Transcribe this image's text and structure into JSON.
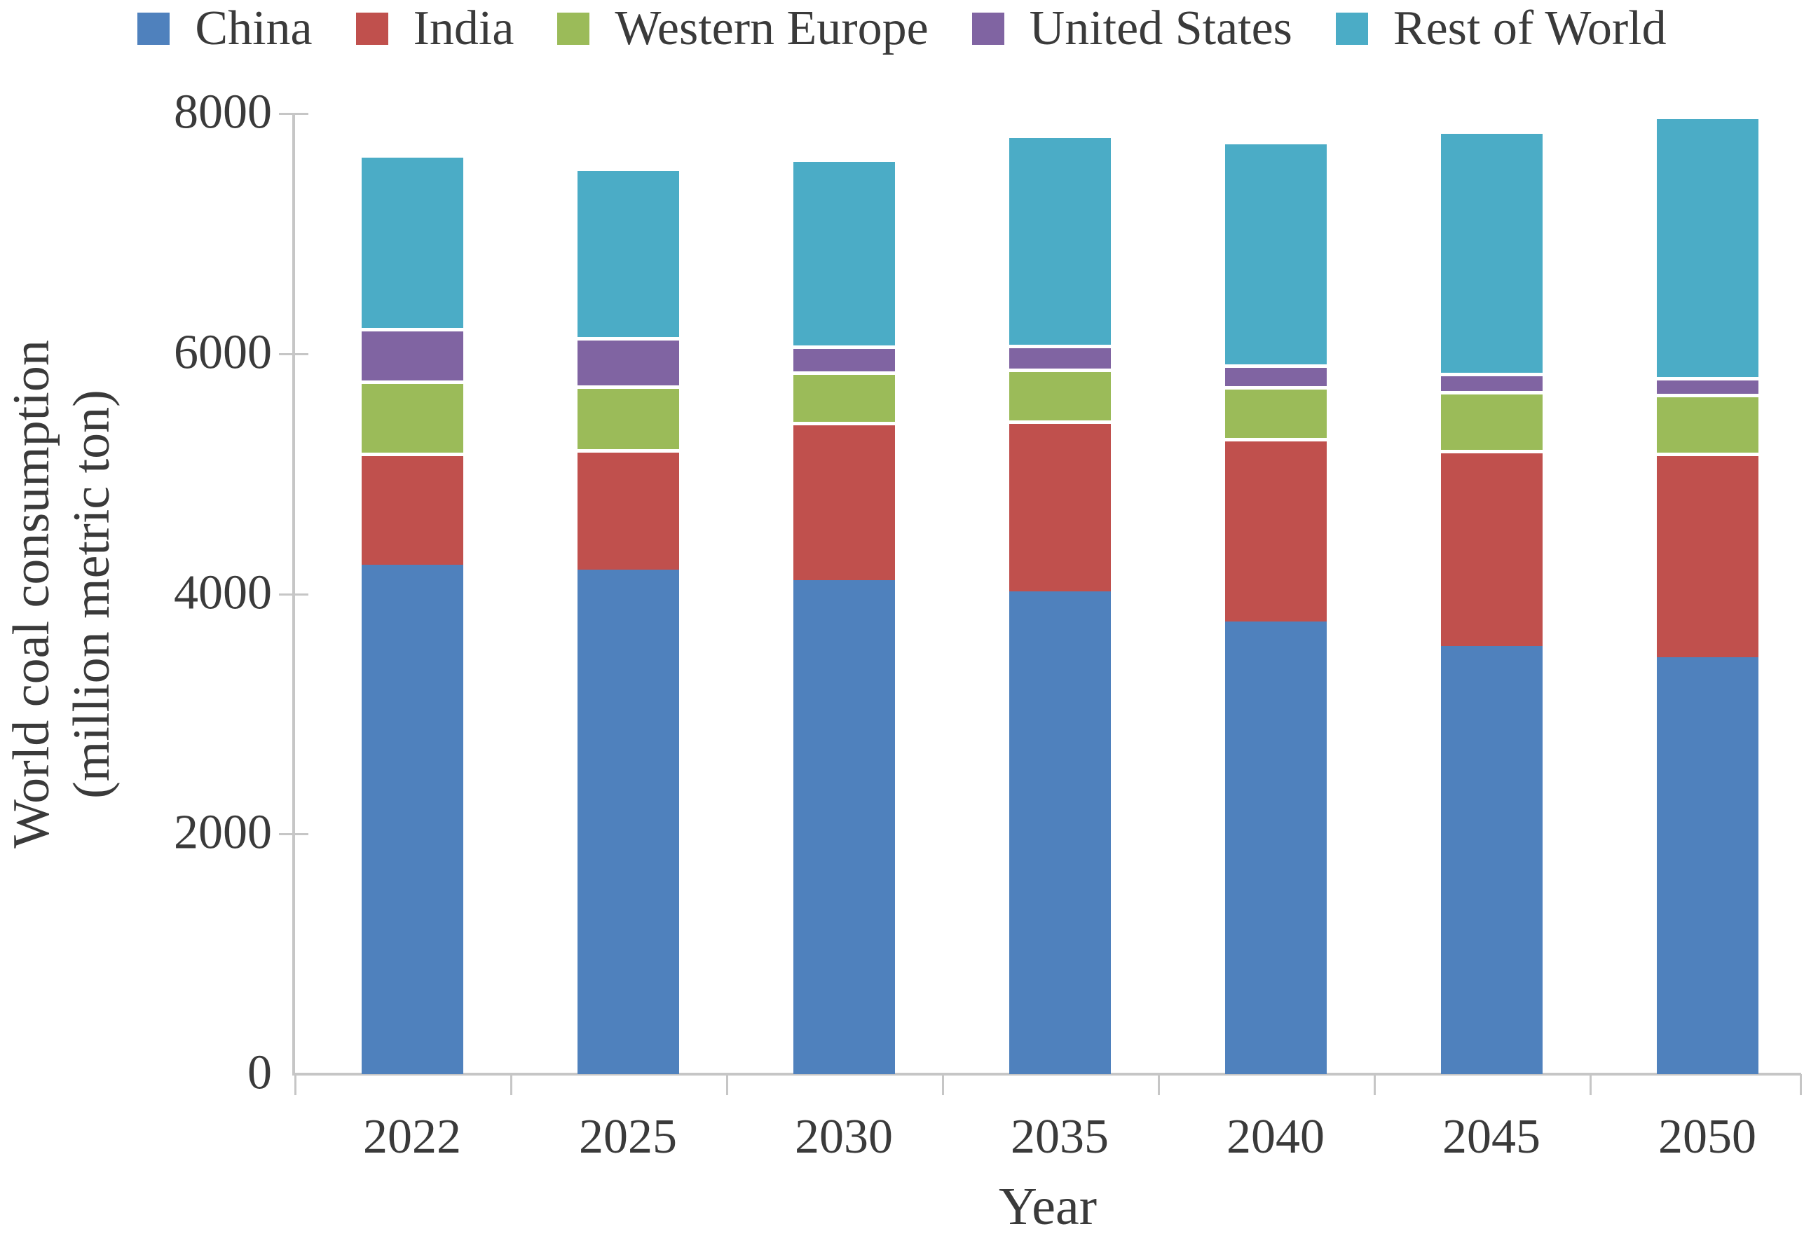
{
  "legend": {
    "entries": [
      "China",
      "India",
      "Western Europe",
      "United States",
      "Rest of World"
    ]
  },
  "axes": {
    "y_title_line1": "World coal consumption",
    "y_title_line2": "(million metric ton)",
    "x_title": "Year",
    "y_tick_labels": [
      "0",
      "2000",
      "4000",
      "6000",
      "8000"
    ]
  },
  "chart_data": {
    "type": "bar",
    "stacked": true,
    "title": "",
    "xlabel": "Year",
    "ylabel": "World coal consumption (million metric ton)",
    "categories": [
      "2022",
      "2025",
      "2030",
      "2035",
      "2040",
      "2045",
      "2050"
    ],
    "series": [
      {
        "name": "China",
        "color": "#4f81bd",
        "values": [
          4240,
          4200,
          4115,
          4020,
          3770,
          3565,
          3470
        ]
      },
      {
        "name": "India",
        "color": "#c0504d",
        "values": [
          935,
          1005,
          1320,
          1425,
          1530,
          1635,
          1705
        ]
      },
      {
        "name": "Western Europe",
        "color": "#9bbb59",
        "values": [
          600,
          530,
          420,
          430,
          430,
          490,
          490
        ]
      },
      {
        "name": "United States",
        "color": "#8064a2",
        "values": [
          440,
          405,
          215,
          200,
          180,
          150,
          140
        ]
      },
      {
        "name": "Rest of World",
        "color": "#4bacc6",
        "values": [
          1445,
          1410,
          1555,
          1750,
          1865,
          2020,
          2180
        ]
      }
    ],
    "totals": [
      7660,
      7550,
      7625,
      7825,
      7775,
      7860,
      7985
    ],
    "ylim": [
      0,
      8000
    ],
    "yticks": [
      0,
      2000,
      4000,
      6000,
      8000
    ],
    "legend_position": "top",
    "grid": false,
    "colors": {
      "axis": "#c6c6c6",
      "text": "#3a3a3a",
      "background": "#ffffff",
      "segment_separator": "#ffffff"
    }
  }
}
